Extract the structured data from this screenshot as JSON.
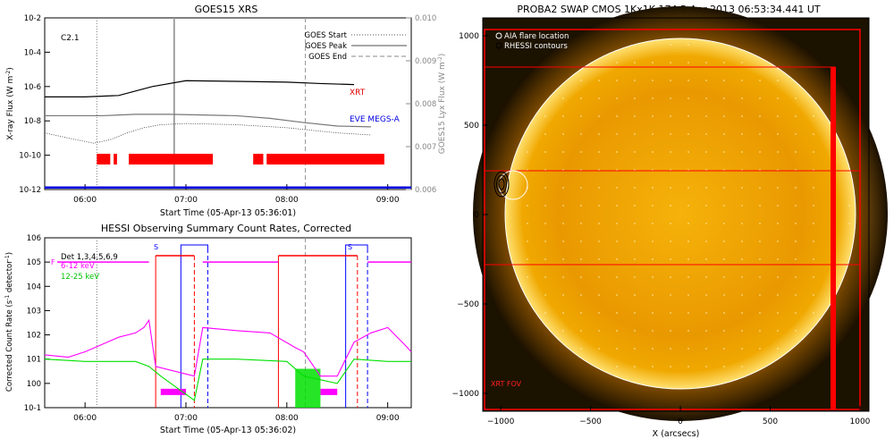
{
  "panels": {
    "goes": {
      "title": "GOES15 XRS",
      "xlabel": "Start Time (05-Apr-13 05:36:01)",
      "ylabel_left": "X-ray Flux (W m",
      "ylabel_left_exp": "-2",
      "ylabel_left_close": ")",
      "ylabel_right": "GOES15 Lyx Flux (W m",
      "ylabel_right_exp": "-2",
      "ylabel_right_close": ")",
      "flare_class": "C2.1",
      "label_xrt": "XRT",
      "label_eve": "EVE MEGS-A",
      "legend": [
        {
          "label": "GOES Start",
          "style": "dotted"
        },
        {
          "label": "GOES Peak",
          "style": "solid"
        },
        {
          "label": "GOES End",
          "style": "dashed"
        }
      ]
    },
    "hessi": {
      "title": "HESSI Observing Summary Count Rates, Corrected",
      "xlabel": "Start Time (05-Apr-13 05:36:02)",
      "ylabel": "Corrected Count Rate (s",
      "ylabel_exp": "-1",
      "ylabel_tail": " detector",
      "ylabel_exp2": "-1",
      "ylabel_close": ")",
      "legend": [
        {
          "label": "Det 1,3,4,5,6,9",
          "color": "#000000"
        },
        {
          "label": "6-12 keV",
          "color": "#ff00ff"
        },
        {
          "label": "12-25 keV",
          "color": "#00e000"
        }
      ],
      "flag_letters": [
        "F",
        "S",
        "S"
      ]
    },
    "swap": {
      "title": "PROBA2 SWAP CMOS 1Kx1K 174   5-Apr-2013 06:53:34.441 UT",
      "xlabel": "X (arcsecs)",
      "legend": [
        {
          "label": "AIA flare location",
          "symbol": "circle-white"
        },
        {
          "label": "RHESSI contours",
          "symbol": "circle-black"
        }
      ],
      "fov_label": "XRT FOV"
    }
  },
  "colors": {
    "xrt": "#e00000",
    "eve": "#0000dd",
    "magenta": "#ff00ff",
    "green": "#00e000",
    "red": "#ff0000",
    "blue": "#0000ff",
    "sun": "#f0a400"
  },
  "chart_data": [
    {
      "type": "line",
      "title": "GOES15 XRS",
      "xlabel": "Start Time (05-Apr-13 05:36:01)",
      "ylabel": "X-ray Flux (W m-2)",
      "ylabel_right": "GOES15 Lyx Flux (W m-2)",
      "ylim": [
        1e-12,
        0.01
      ],
      "ylim_right": [
        0.006,
        0.01
      ],
      "yscale": "log",
      "x_range": [
        "05:36",
        "09:14"
      ],
      "x_ticks": [
        "06:00",
        "07:00",
        "08:00",
        "09:00"
      ],
      "y_ticks": [
        "10^-12",
        "10^-10",
        "10^-8",
        "10^-6",
        "10^-4",
        "10^-2"
      ],
      "y_ticks_right": [
        "0.006",
        "0.007",
        "0.008",
        "0.009",
        "0.010"
      ],
      "goes_start": "06:07",
      "goes_peak": "06:53",
      "goes_end": "08:11",
      "series": [
        {
          "name": "XRT",
          "x": [
            "05:36",
            "06:00",
            "06:20",
            "06:40",
            "07:00",
            "07:30",
            "08:00",
            "08:20",
            "08:40"
          ],
          "values": [
            2.5e-07,
            2.5e-07,
            3e-07,
            1e-06,
            2.2e-06,
            2e-06,
            1.8e-06,
            1.5e-06,
            1.3e-06
          ]
        },
        {
          "name": "EVE MEGS-A",
          "x": [
            "05:36",
            "09:14"
          ],
          "values": [
            1.3e-12,
            1.3e-12
          ]
        }
      ],
      "unnamed_series": [
        {
          "x": [
            "05:36",
            "05:50",
            "06:10",
            "06:30",
            "06:50",
            "07:10",
            "07:30",
            "07:50",
            "08:10",
            "08:30",
            "08:50"
          ],
          "values": [
            2e-08,
            2e-08,
            2e-08,
            2.4e-08,
            2.4e-08,
            2.2e-08,
            2e-08,
            1.4e-08,
            8e-09,
            5e-09,
            4.5e-09
          ]
        },
        {
          "x": [
            "05:36",
            "05:50",
            "06:05",
            "06:15",
            "06:25",
            "06:35",
            "06:45",
            "07:00",
            "07:30",
            "08:00",
            "08:30",
            "08:50"
          ],
          "values": [
            2e-09,
            1e-09,
            5e-10,
            8e-10,
            2e-09,
            4e-09,
            6e-09,
            7e-09,
            6e-09,
            4e-09,
            2e-09,
            1.5e-09
          ]
        }
      ],
      "xrt_coverage": [
        [
          "06:07",
          "06:15"
        ],
        [
          "06:17",
          "06:19"
        ],
        [
          "06:26",
          "07:16"
        ],
        [
          "07:40",
          "07:46"
        ],
        [
          "07:48",
          "08:58"
        ]
      ]
    },
    {
      "type": "line",
      "title": "HESSI Observing Summary Count Rates, Corrected",
      "xlabel": "Start Time (05-Apr-13 05:36:02)",
      "ylabel": "Corrected Count Rate (s-1 detector-1)",
      "ylim": [
        0.1,
        1000000
      ],
      "yscale": "log",
      "x_ticks": [
        "06:00",
        "07:00",
        "08:00",
        "09:00"
      ],
      "y_ticks": [
        "10^-1",
        "10^0",
        "10^1",
        "10^2",
        "10^3",
        "10^4",
        "10^5",
        "10^6"
      ],
      "series": [
        {
          "name": "6-12 keV",
          "x": [
            "05:36",
            "05:50",
            "06:00",
            "06:10",
            "06:20",
            "06:30",
            "06:35",
            "06:38",
            "06:42",
            "07:05",
            "07:10",
            "07:30",
            "07:50",
            "08:05",
            "08:10",
            "08:20",
            "08:30",
            "08:40",
            "08:50",
            "09:00",
            "09:10",
            "09:14"
          ],
          "values": [
            15,
            12,
            20,
            40,
            80,
            120,
            200,
            400,
            5,
            2,
            200,
            150,
            120,
            30,
            20,
            2,
            2,
            50,
            120,
            200,
            40,
            20
          ]
        },
        {
          "name": "12-25 keV",
          "x": [
            "05:36",
            "06:00",
            "06:30",
            "06:38",
            "06:45",
            "07:05",
            "07:10",
            "07:30",
            "08:00",
            "08:10",
            "08:30",
            "08:40",
            "09:00",
            "09:14"
          ],
          "values": [
            10,
            8,
            8,
            5,
            2,
            0.2,
            10,
            10,
            8,
            2,
            1,
            10,
            8,
            8
          ]
        }
      ],
      "attenuator_top": [
        [
          10,
          "06:42"
        ],
        [
          100000,
          "06:42"
        ],
        [
          100000,
          "06:57"
        ],
        [
          100000,
          "07:10"
        ],
        [
          100000,
          "07:55"
        ],
        [
          100000,
          "08:05"
        ],
        [
          100000,
          "08:45"
        ]
      ]
    }
  ]
}
